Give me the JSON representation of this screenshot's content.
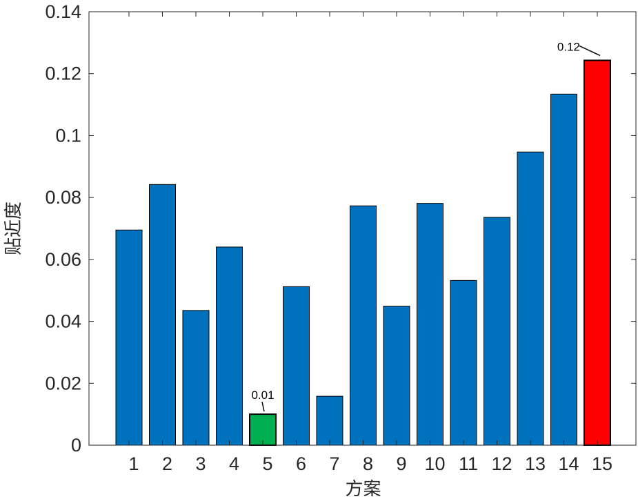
{
  "chart_data": {
    "type": "bar",
    "xlabel": "方案",
    "ylabel": "贴近度",
    "ylim": [
      0,
      0.14
    ],
    "yticks": [
      0,
      0.02,
      0.04,
      0.06,
      0.08,
      0.1,
      0.12,
      0.14
    ],
    "ytick_labels": [
      "0",
      "0.02",
      "0.04",
      "0.06",
      "0.08",
      "0.1",
      "0.12",
      "0.14"
    ],
    "categories": [
      "1",
      "2",
      "3",
      "4",
      "5",
      "6",
      "7",
      "8",
      "9",
      "10",
      "11",
      "12",
      "13",
      "14",
      "15"
    ],
    "values": [
      0.0695,
      0.0842,
      0.0435,
      0.064,
      0.01,
      0.0512,
      0.0158,
      0.0773,
      0.0449,
      0.0781,
      0.0532,
      0.0736,
      0.0947,
      0.1134,
      0.1243
    ],
    "grid": false,
    "colors": {
      "default": "#0072BD",
      "min": "#00B050",
      "max": "#FF0000"
    },
    "annotations": [
      {
        "category": "5",
        "text": "0.01"
      },
      {
        "category": "15",
        "text": "0.12"
      }
    ]
  }
}
